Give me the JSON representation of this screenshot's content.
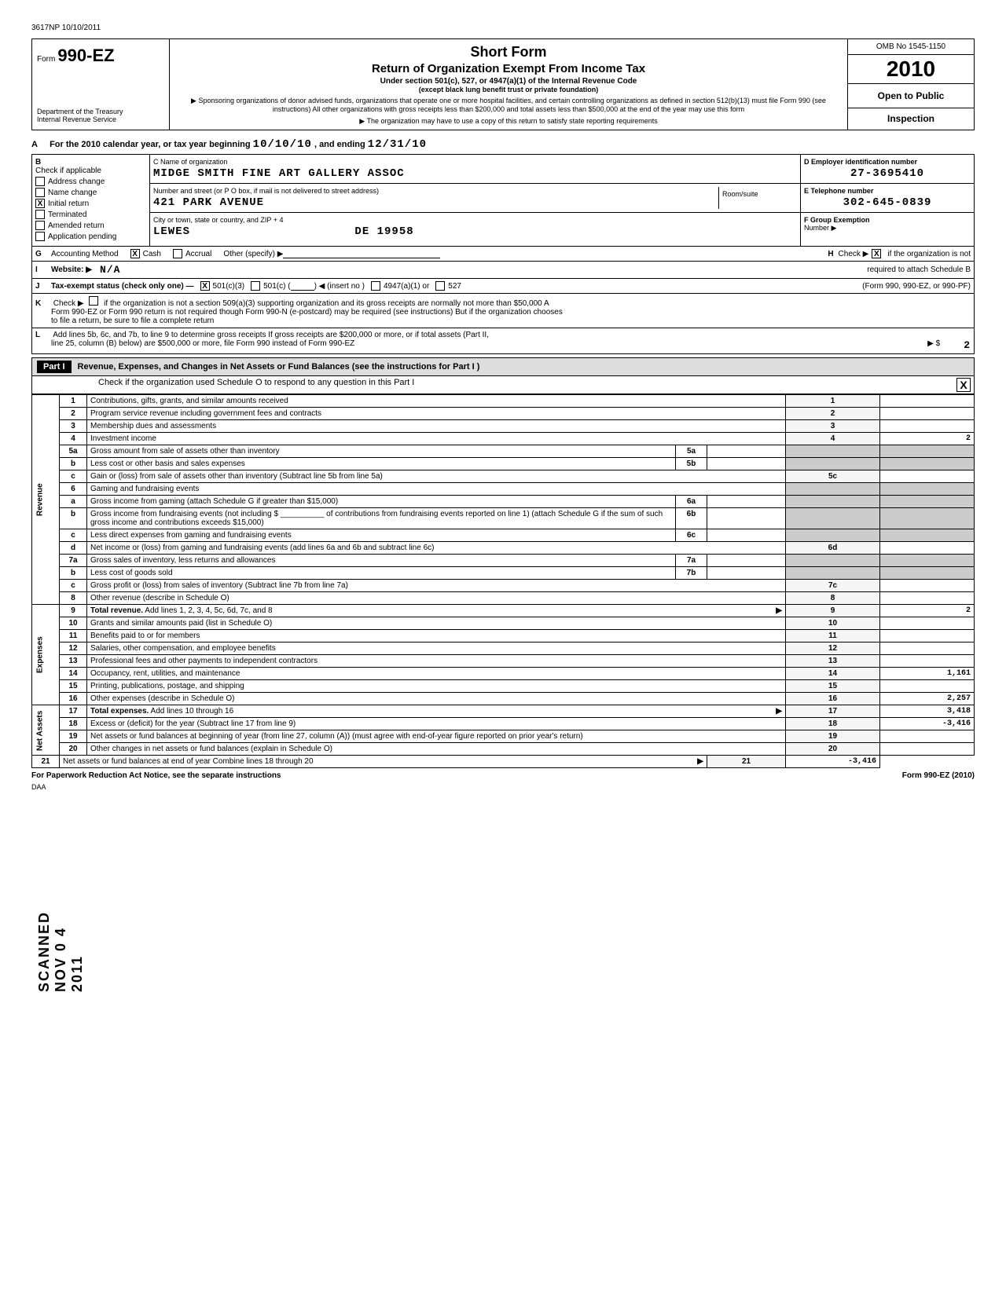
{
  "meta": {
    "doc_number": "3617NP 10/10/2011"
  },
  "header": {
    "form_word": "Form",
    "form_number": "990-EZ",
    "dept": "Department of the Treasury\nInternal Revenue Service",
    "short_form": "Short Form",
    "return_title": "Return of Organization Exempt From Income Tax",
    "subtitle": "Under section 501(c), 527, or 4947(a)(1) of the Internal Revenue Code",
    "sub2": "(except black lung benefit trust or private foundation)",
    "desc1": "▶ Sponsoring organizations of donor advised funds, organizations that operate one or more hospital facilities, and certain controlling organizations as defined in section 512(b)(13) must file Form 990 (see instructions) All other organizations with gross receipts less than $200,000 and total assets less than $500,000 at the end of the year may use this form",
    "desc2": "▶ The organization may have to use a copy of this return to satisfy state reporting requirements",
    "omb": "OMB No 1545-1150",
    "year": "2010",
    "open_public": "Open to Public",
    "inspection": "Inspection"
  },
  "line_a": {
    "label": "A",
    "text": "For the 2010 calendar year, or tax year beginning",
    "begin_date": "10/10/10",
    "mid": ", and ending",
    "end_date": "12/31/10"
  },
  "section_b": {
    "b_label": "B",
    "check_label": "Check if applicable",
    "checkboxes": [
      {
        "label": "Address change",
        "checked": false
      },
      {
        "label": "Name change",
        "checked": false
      },
      {
        "label": "Initial return",
        "checked": true
      },
      {
        "label": "Terminated",
        "checked": false
      },
      {
        "label": "Amended return",
        "checked": false
      },
      {
        "label": "Application pending",
        "checked": false
      }
    ],
    "c_label": "C  Name of organization",
    "org_name": "MIDGE SMITH FINE ART GALLERY ASSOC",
    "street_label": "Number and street (or P O  box, if mail is not delivered to street address)",
    "street": "421 PARK AVENUE",
    "room_label": "Room/suite",
    "city_label": "City or town, state or country, and ZIP + 4",
    "city": "LEWES",
    "state_zip": "DE  19958",
    "d_label": "D  Employer identification number",
    "ein": "27-3695410",
    "e_label": "E  Telephone number",
    "phone": "302-645-0839",
    "f_label": "F  Group Exemption",
    "f_sub": "Number        ▶"
  },
  "line_g": {
    "g_label": "G",
    "acct_label": "Accounting Method",
    "cash_checked": true,
    "cash": "Cash",
    "accrual": "Accrual",
    "other": "Other (specify) ▶",
    "h_label": "H",
    "h_text": "Check ▶",
    "h_checked": true,
    "h_after": "if the organization is not",
    "h_after2": "required to attach Schedule B",
    "h_after3": "(Form 990, 990-EZ, or 990-PF)"
  },
  "line_i": {
    "label": "I",
    "text": "Website:  ▶",
    "value": "N/A"
  },
  "line_j": {
    "label": "J",
    "text": "Tax-exempt status (check only one) —",
    "c3_checked": true,
    "c3": "501(c)(3)",
    "c": "501(c) (",
    "insert": ") ◀ (insert no )",
    "a1": "4947(a)(1) or",
    "s527": "527"
  },
  "line_k": {
    "label": "K",
    "text1": "Check ▶",
    "text2": "if the organization is not a section 509(a)(3) supporting organization and its gross receipts are normally not more than $50,000  A",
    "text3": "Form 990-EZ or Form 990 return is not required though Form 990-N (e-postcard) may be required (see instructions) But if the organization chooses",
    "text4": "to file a return, be sure to file a complete return"
  },
  "line_l": {
    "label": "L",
    "text1": "Add lines 5b, 6c, and 7b, to line 9 to determine gross receipts If gross receipts are $200,000 or more, or if total assets (Part II,",
    "text2": "line 25, column (B) below) are $500,000 or more, file Form 990 instead of Form 990-EZ",
    "arrow": "▶  $",
    "value": "2"
  },
  "part1": {
    "label": "Part I",
    "title": "Revenue, Expenses, and Changes in Net Assets or Fund Balances (see the instructions for Part I )",
    "check_text": "Check if the organization used Schedule O to respond to any question in this Part I",
    "checked": true
  },
  "side_labels": {
    "revenue": "Revenue",
    "expenses": "Expenses",
    "net_assets": "Net Assets"
  },
  "rows": [
    {
      "num": "1",
      "desc": "Contributions, gifts, grants, and similar amounts received",
      "line": "1",
      "val": ""
    },
    {
      "num": "2",
      "desc": "Program service revenue including government fees and contracts",
      "line": "2",
      "val": ""
    },
    {
      "num": "3",
      "desc": "Membership dues and assessments",
      "line": "3",
      "val": ""
    },
    {
      "num": "4",
      "desc": "Investment income",
      "line": "4",
      "val": "2"
    },
    {
      "num": "5a",
      "desc": "Gross amount from sale of assets other than inventory",
      "sub": "5a"
    },
    {
      "num": "b",
      "desc": "Less  cost or other basis and sales expenses",
      "sub": "5b"
    },
    {
      "num": "c",
      "desc": "Gain or (loss) from sale of assets other than inventory (Subtract line 5b from line 5a)",
      "line": "5c",
      "val": ""
    },
    {
      "num": "6",
      "desc": "Gaming and fundraising events"
    },
    {
      "num": "a",
      "desc": "Gross income from gaming (attach Schedule G if greater than $15,000)",
      "sub": "6a"
    },
    {
      "num": "b",
      "desc": "Gross income from fundraising events (not including $ __________ of contributions from fundraising events reported on line 1) (attach Schedule G if the sum of such gross income and contributions exceeds $15,000)",
      "sub": "6b"
    },
    {
      "num": "c",
      "desc": "Less  direct expenses from gaming and fundraising events",
      "sub": "6c"
    },
    {
      "num": "d",
      "desc": "Net income or (loss) from gaming and fundraising events (add lines 6a and 6b and subtract line 6c)",
      "line": "6d",
      "val": ""
    },
    {
      "num": "7a",
      "desc": "Gross sales of inventory, less returns and allowances",
      "sub": "7a"
    },
    {
      "num": "b",
      "desc": "Less  cost of goods sold",
      "sub": "7b"
    },
    {
      "num": "c",
      "desc": "Gross profit or (loss) from sales of inventory (Subtract line 7b from line 7a)",
      "line": "7c",
      "val": ""
    },
    {
      "num": "8",
      "desc": "Other revenue (describe in Schedule O)",
      "line": "8",
      "val": ""
    },
    {
      "num": "9",
      "desc": "Total revenue. Add lines 1, 2, 3, 4, 5c, 6d, 7c, and 8",
      "line": "9",
      "val": "2",
      "bold": true,
      "arrow": true
    },
    {
      "num": "10",
      "desc": "Grants and similar amounts paid (list in Schedule O)",
      "line": "10",
      "val": ""
    },
    {
      "num": "11",
      "desc": "Benefits paid to or for members",
      "line": "11",
      "val": ""
    },
    {
      "num": "12",
      "desc": "Salaries, other compensation, and employee benefits",
      "line": "12",
      "val": ""
    },
    {
      "num": "13",
      "desc": "Professional fees and other payments to independent contractors",
      "line": "13",
      "val": ""
    },
    {
      "num": "14",
      "desc": "Occupancy, rent, utilities, and maintenance",
      "line": "14",
      "val": "1,161"
    },
    {
      "num": "15",
      "desc": "Printing, publications, postage, and shipping",
      "line": "15",
      "val": ""
    },
    {
      "num": "16",
      "desc": "Other expenses (describe in Schedule O)",
      "line": "16",
      "val": "2,257"
    },
    {
      "num": "17",
      "desc": "Total expenses. Add lines 10 through 16",
      "line": "17",
      "val": "3,418",
      "bold": true,
      "arrow": true
    },
    {
      "num": "18",
      "desc": "Excess or (deficit) for the year (Subtract line 17 from line 9)",
      "line": "18",
      "val": "-3,416"
    },
    {
      "num": "19",
      "desc": "Net assets or fund balances at beginning of year (from line 27, column (A)) (must agree with end-of-year figure reported on prior year's return)",
      "line": "19",
      "val": ""
    },
    {
      "num": "20",
      "desc": "Other changes in net assets or fund balances (explain in Schedule O)",
      "line": "20",
      "val": ""
    },
    {
      "num": "21",
      "desc": "Net assets or fund balances at end of year Combine lines 18 through 20",
      "line": "21",
      "val": "-3,416",
      "arrow": true
    }
  ],
  "footer": {
    "paperwork": "For Paperwork Reduction Act Notice, see the separate instructions",
    "form_ref": "Form 990-EZ (2010)",
    "daa": "DAA"
  },
  "stamp": "SCANNED NOV 0 4 2011"
}
